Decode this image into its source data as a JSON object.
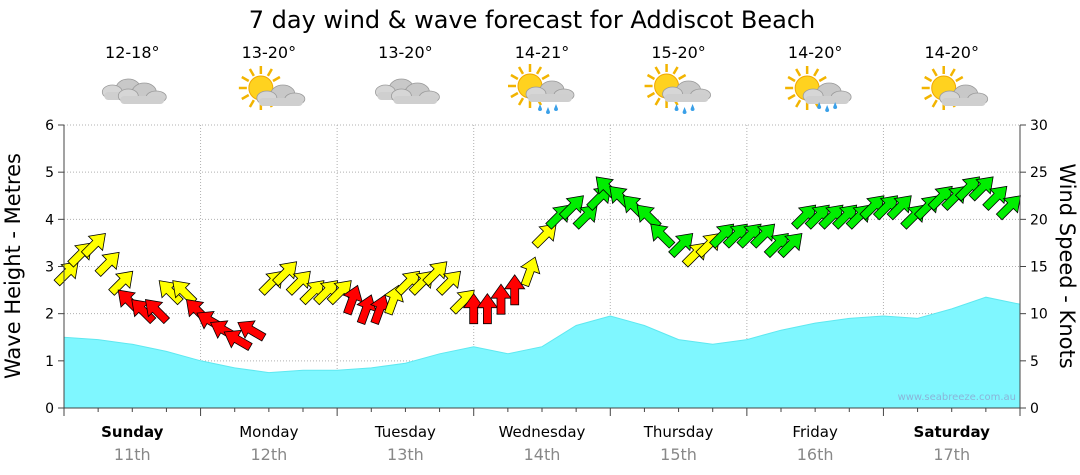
{
  "chart_data": {
    "type": "area",
    "title": "7 day wind & wave forecast for Addiscot Beach",
    "ylabel": "Wave Height - Metres",
    "y2label": "Wind Speed - Knots",
    "ylim": [
      0,
      6
    ],
    "y2lim": [
      0,
      30
    ],
    "yticks": [
      "0",
      "1",
      "2",
      "3",
      "4",
      "5",
      "6"
    ],
    "y2ticks": [
      "0",
      "5",
      "10",
      "15",
      "20",
      "25",
      "30"
    ],
    "grid": true,
    "watermark": "www.seabreeze.com.au",
    "days": [
      {
        "name": "Sunday",
        "date": "11th",
        "temp": "12-18°",
        "weather": "cloudy",
        "bold": true
      },
      {
        "name": "Monday",
        "date": "12th",
        "temp": "13-20°",
        "weather": "partly-cloudy",
        "bold": false
      },
      {
        "name": "Tuesday",
        "date": "13th",
        "temp": "13-20°",
        "weather": "cloudy",
        "bold": false
      },
      {
        "name": "Wednesday",
        "date": "14th",
        "temp": "14-21°",
        "weather": "showers",
        "bold": false
      },
      {
        "name": "Thursday",
        "date": "15th",
        "temp": "15-20°",
        "weather": "showers",
        "bold": false
      },
      {
        "name": "Friday",
        "date": "16th",
        "temp": "14-20°",
        "weather": "sun-showers",
        "bold": false
      },
      {
        "name": "Saturday",
        "date": "17th",
        "temp": "14-20°",
        "weather": "partly-cloudy",
        "bold": true
      }
    ],
    "wave_height": {
      "x": [
        0,
        0.25,
        0.5,
        0.75,
        1.0,
        1.25,
        1.5,
        1.75,
        2.0,
        2.25,
        2.5,
        2.75,
        3.0,
        3.25,
        3.5,
        3.75,
        4.0,
        4.25,
        4.5,
        4.75,
        5.0,
        5.25,
        5.5,
        5.75,
        6.0,
        6.25,
        6.5,
        6.75,
        7.0
      ],
      "values": [
        1.5,
        1.45,
        1.35,
        1.2,
        1.0,
        0.85,
        0.75,
        0.8,
        0.8,
        0.85,
        0.95,
        1.15,
        1.3,
        1.15,
        1.3,
        1.75,
        1.95,
        1.75,
        1.45,
        1.35,
        1.45,
        1.65,
        1.8,
        1.9,
        1.95,
        1.9,
        2.1,
        2.35,
        2.2
      ]
    },
    "wind": {
      "x": [
        0.0,
        0.1,
        0.2,
        0.3,
        0.4,
        0.5,
        0.6,
        0.7,
        0.8,
        0.9,
        1.0,
        1.1,
        1.2,
        1.3,
        1.4,
        1.5,
        1.6,
        1.7,
        1.8,
        1.9,
        2.0,
        2.1,
        2.2,
        2.3,
        2.4,
        2.5,
        2.6,
        2.7,
        2.8,
        2.9,
        3.0,
        3.1,
        3.2,
        3.3,
        3.4,
        3.5,
        3.6,
        3.7,
        3.8,
        3.9,
        4.0,
        4.1,
        4.2,
        4.3,
        4.4,
        4.5,
        4.6,
        4.7,
        4.8,
        4.9,
        5.0,
        5.1,
        5.2,
        5.3,
        5.4,
        5.5,
        5.6,
        5.7,
        5.8,
        5.9,
        6.0,
        6.1,
        6.2,
        6.3,
        6.4,
        6.5,
        6.6,
        6.7,
        6.8,
        6.9
      ],
      "speed": [
        14,
        16,
        17,
        15,
        13,
        11,
        10,
        10,
        12,
        12,
        10,
        9,
        8,
        7,
        8,
        13,
        14,
        13,
        12,
        12,
        12,
        11,
        10,
        10,
        11,
        13,
        13,
        14,
        13,
        11,
        10,
        10,
        11,
        12,
        14,
        18,
        20,
        21,
        20,
        22,
        23,
        22,
        21,
        20,
        18,
        17,
        16,
        17,
        18,
        18,
        18,
        18,
        17,
        17,
        20,
        20,
        20,
        20,
        20,
        21,
        21,
        21,
        20,
        21,
        22,
        22,
        23,
        23,
        22,
        21
      ],
      "direction_deg": [
        225,
        225,
        225,
        225,
        225,
        135,
        135,
        135,
        135,
        135,
        135,
        120,
        120,
        120,
        120,
        225,
        225,
        225,
        225,
        225,
        225,
        200,
        200,
        200,
        200,
        225,
        225,
        225,
        225,
        225,
        180,
        180,
        180,
        180,
        200,
        225,
        225,
        225,
        225,
        225,
        135,
        135,
        135,
        135,
        135,
        225,
        225,
        225,
        225,
        225,
        225,
        225,
        225,
        225,
        225,
        225,
        225,
        225,
        225,
        225,
        225,
        225,
        225,
        225,
        225,
        225,
        225,
        225,
        225,
        225
      ],
      "color_legend": {
        "offshore": "#ff0000",
        "cross": "#ffff00",
        "onshore": "#00ee00"
      },
      "zone": [
        "cross",
        "cross",
        "cross",
        "cross",
        "cross",
        "offshore",
        "offshore",
        "offshore",
        "cross",
        "cross",
        "offshore",
        "offshore",
        "offshore",
        "offshore",
        "offshore",
        "cross",
        "cross",
        "cross",
        "cross",
        "cross",
        "cross",
        "offshore",
        "offshore",
        "offshore",
        "cross",
        "cross",
        "cross",
        "cross",
        "cross",
        "cross",
        "offshore",
        "offshore",
        "offshore",
        "offshore",
        "cross",
        "cross",
        "onshore",
        "onshore",
        "onshore",
        "onshore",
        "onshore",
        "onshore",
        "onshore",
        "onshore",
        "onshore",
        "onshore",
        "cross",
        "cross",
        "onshore",
        "onshore",
        "onshore",
        "onshore",
        "onshore",
        "onshore",
        "onshore",
        "onshore",
        "onshore",
        "onshore",
        "onshore",
        "onshore",
        "onshore",
        "onshore",
        "onshore",
        "onshore",
        "onshore",
        "onshore",
        "onshore",
        "onshore",
        "onshore",
        "onshore"
      ]
    },
    "colors": {
      "wave_fill": "#7ff7ff",
      "wave_stroke": "#5ee8f0",
      "grid": "#b0b0b0"
    }
  }
}
